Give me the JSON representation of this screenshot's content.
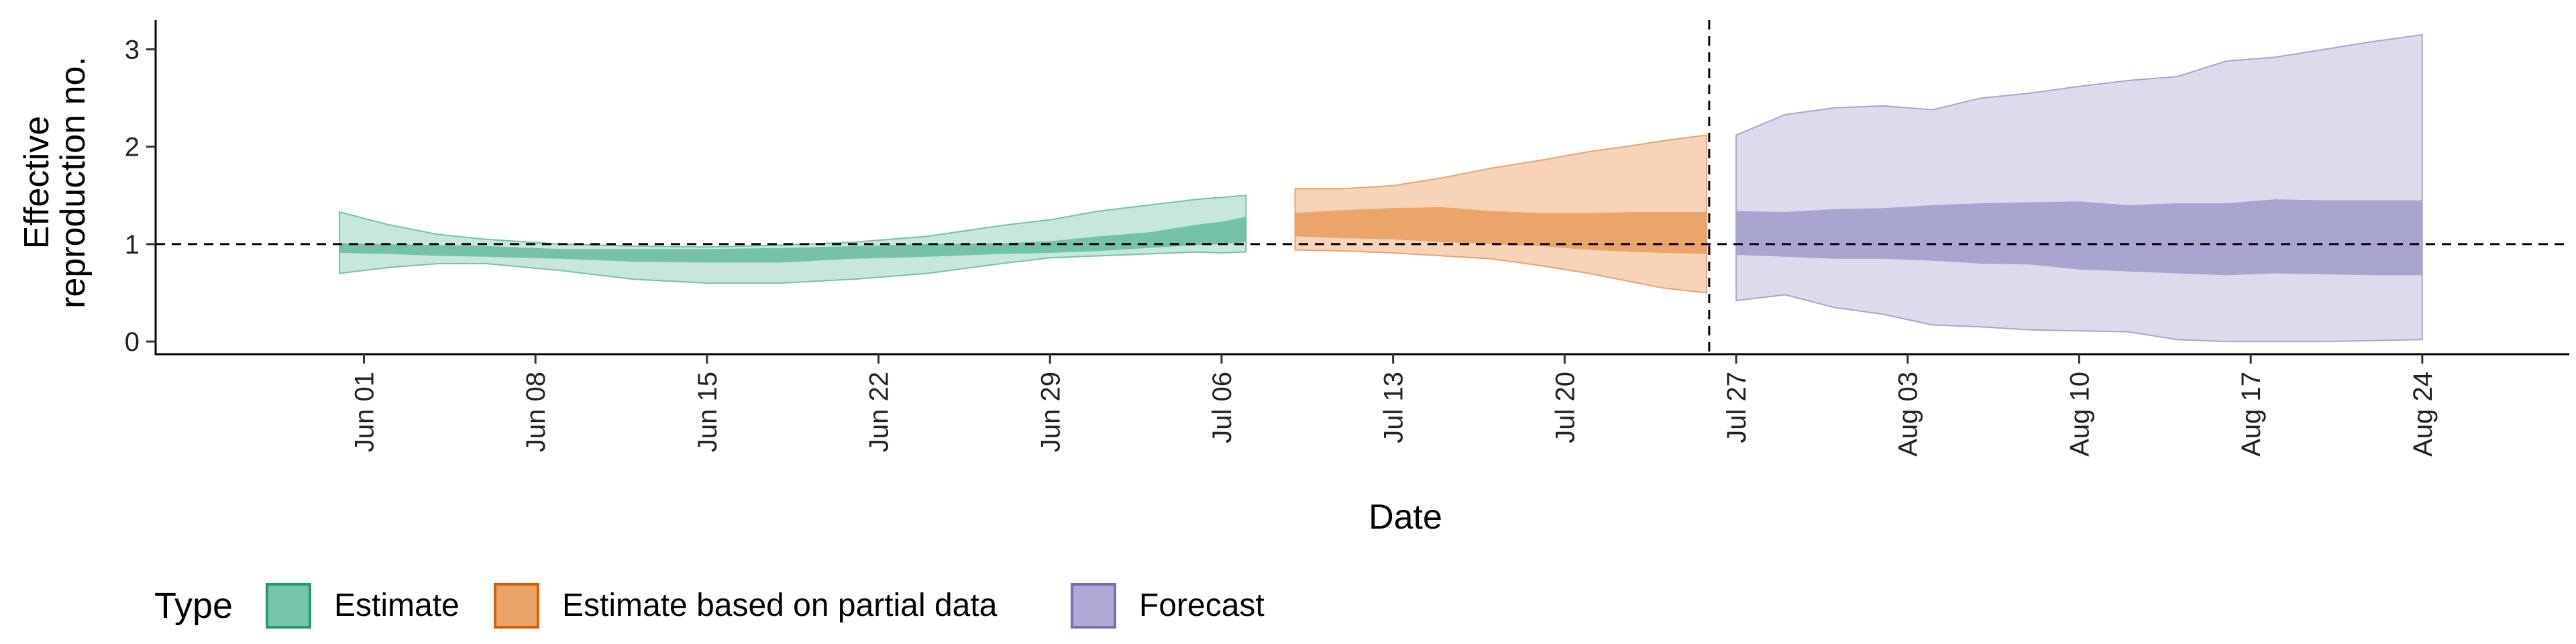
{
  "chart_data": {
    "type": "area",
    "xlabel": "Date",
    "ylabel_lines": [
      "Effective",
      "reproduction no."
    ],
    "yticks": [
      0,
      1,
      2,
      3
    ],
    "ylim": [
      -0.13,
      3.3
    ],
    "x_start": "2020-05-30",
    "xlim": [
      -6.5,
      92
    ],
    "xticks": [
      {
        "day": 2,
        "label": "Jun 01"
      },
      {
        "day": 9,
        "label": "Jun 08"
      },
      {
        "day": 16,
        "label": "Jun 15"
      },
      {
        "day": 23,
        "label": "Jun 22"
      },
      {
        "day": 30,
        "label": "Jun 29"
      },
      {
        "day": 37,
        "label": "Jul 06"
      },
      {
        "day": 44,
        "label": "Jul 13"
      },
      {
        "day": 51,
        "label": "Jul 20"
      },
      {
        "day": 58,
        "label": "Jul 27"
      },
      {
        "day": 65,
        "label": "Aug 03"
      },
      {
        "day": 72,
        "label": "Aug 10"
      },
      {
        "day": 79,
        "label": "Aug 17"
      },
      {
        "day": 86,
        "label": "Aug 24"
      }
    ],
    "reference_hline": 1,
    "reference_vline_day": 56.9,
    "legend": {
      "title": "Type",
      "position": "bottom",
      "items": [
        {
          "label": "Estimate",
          "fill": "#76c4aa",
          "stroke": "#1b9e77"
        },
        {
          "label": "Estimate based on partial data",
          "fill": "#eba468",
          "stroke": "#d95f02"
        },
        {
          "label": "Forecast",
          "fill": "#aeaad4",
          "stroke": "#7570b3"
        }
      ]
    },
    "series": [
      {
        "name": "Estimate",
        "outer_color": "#c7e7dc",
        "inner_color": "#74c3a8",
        "points": [
          [
            1,
            0.7,
            1.33,
            0.91,
            1.01
          ],
          [
            3,
            0.76,
            1.2,
            0.9,
            1.0
          ],
          [
            5,
            0.8,
            1.1,
            0.88,
            0.99
          ],
          [
            7,
            0.8,
            1.05,
            0.87,
            0.98
          ],
          [
            10,
            0.73,
            1.0,
            0.85,
            0.95
          ],
          [
            13,
            0.64,
            0.98,
            0.82,
            0.95
          ],
          [
            16,
            0.6,
            0.97,
            0.81,
            0.95
          ],
          [
            19,
            0.6,
            0.99,
            0.81,
            0.96
          ],
          [
            22,
            0.64,
            1.02,
            0.85,
            0.98
          ],
          [
            25,
            0.7,
            1.08,
            0.87,
            1.0
          ],
          [
            28,
            0.8,
            1.19,
            0.9,
            1.01
          ],
          [
            30,
            0.86,
            1.25,
            0.91,
            1.03
          ],
          [
            32,
            0.88,
            1.34,
            0.93,
            1.08
          ],
          [
            34,
            0.9,
            1.4,
            0.96,
            1.12
          ],
          [
            36,
            0.92,
            1.46,
            0.99,
            1.2
          ],
          [
            37,
            0.91,
            1.48,
            1.0,
            1.23
          ],
          [
            38,
            0.92,
            1.5,
            1.02,
            1.28
          ]
        ]
      },
      {
        "name": "Estimate based on partial data",
        "outer_color": "#f6d3b9",
        "inner_color": "#eba46a",
        "points": [
          [
            40,
            0.94,
            1.57,
            1.08,
            1.32
          ],
          [
            42,
            0.93,
            1.57,
            1.06,
            1.35
          ],
          [
            44,
            0.91,
            1.6,
            1.05,
            1.37
          ],
          [
            46,
            0.88,
            1.68,
            1.02,
            1.38
          ],
          [
            48,
            0.85,
            1.78,
            1.0,
            1.34
          ],
          [
            50,
            0.78,
            1.86,
            0.98,
            1.32
          ],
          [
            52,
            0.7,
            1.95,
            0.94,
            1.32
          ],
          [
            54,
            0.6,
            2.02,
            0.92,
            1.33
          ],
          [
            55,
            0.55,
            2.06,
            0.91,
            1.33
          ],
          [
            56.8,
            0.5,
            2.12,
            0.9,
            1.33
          ]
        ]
      },
      {
        "name": "Forecast",
        "outer_color": "#dcdbec",
        "inner_color": "#a8a5d0",
        "points": [
          [
            58,
            0.42,
            2.12,
            0.89,
            1.34
          ],
          [
            60,
            0.48,
            2.33,
            0.87,
            1.33
          ],
          [
            62,
            0.35,
            2.4,
            0.85,
            1.36
          ],
          [
            64,
            0.28,
            2.42,
            0.85,
            1.37
          ],
          [
            66,
            0.17,
            2.38,
            0.83,
            1.4
          ],
          [
            68,
            0.15,
            2.5,
            0.8,
            1.42
          ],
          [
            70,
            0.12,
            2.55,
            0.79,
            1.43
          ],
          [
            72,
            0.11,
            2.62,
            0.74,
            1.44
          ],
          [
            74,
            0.1,
            2.68,
            0.72,
            1.4
          ],
          [
            76,
            0.02,
            2.72,
            0.7,
            1.42
          ],
          [
            78,
            0.0,
            2.88,
            0.68,
            1.42
          ],
          [
            80,
            0.0,
            2.92,
            0.7,
            1.46
          ],
          [
            82,
            0.0,
            3.0,
            0.69,
            1.45
          ],
          [
            84,
            0.01,
            3.08,
            0.68,
            1.45
          ],
          [
            86,
            0.02,
            3.15,
            0.68,
            1.45
          ]
        ]
      }
    ]
  }
}
